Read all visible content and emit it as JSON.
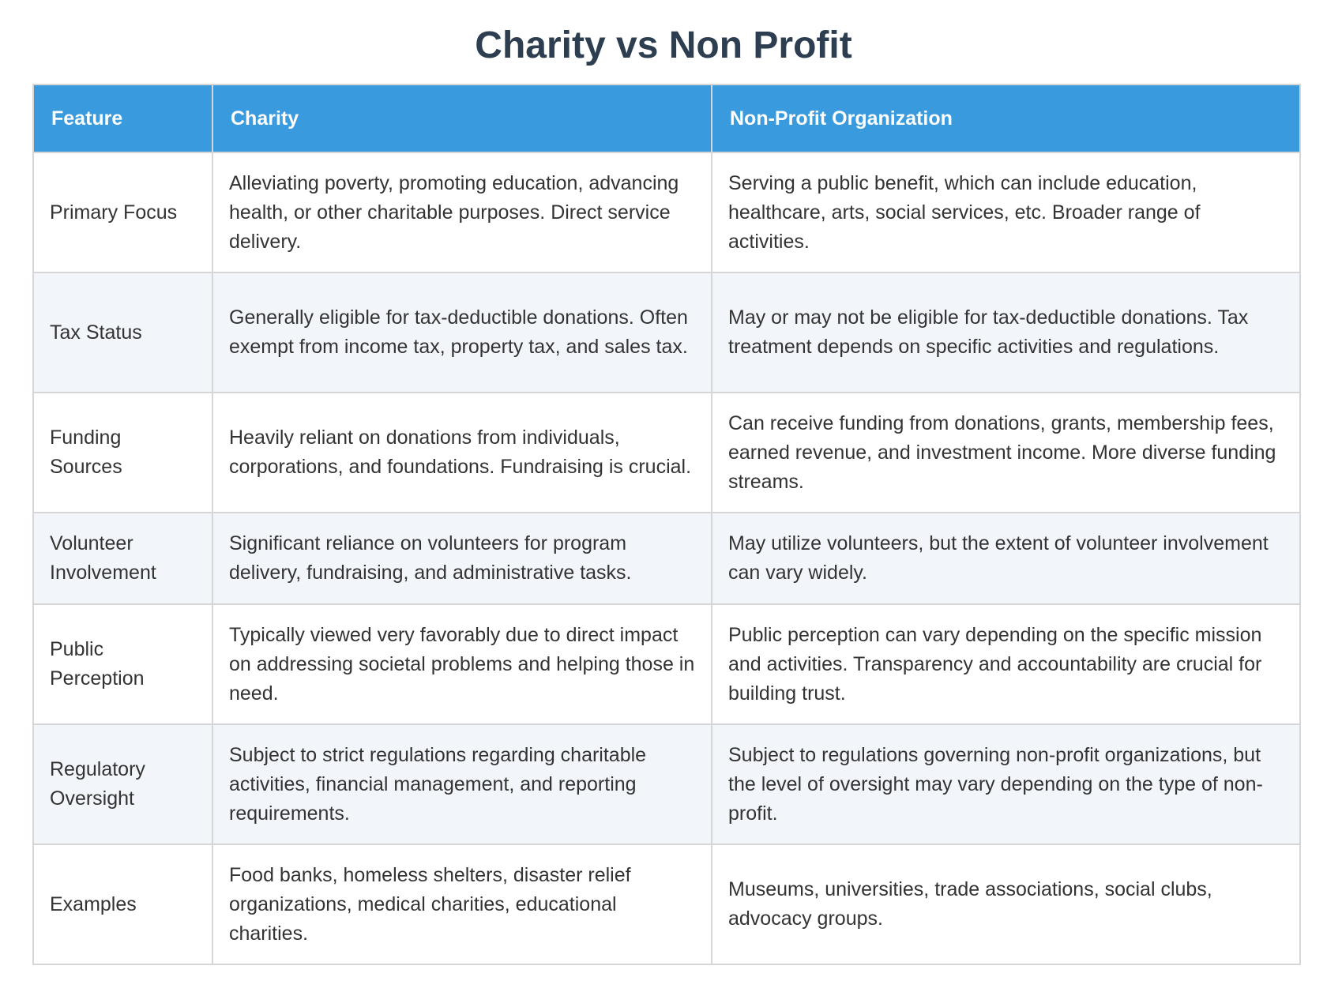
{
  "title": "Charity vs Non Profit",
  "table": {
    "headers": [
      "Feature",
      "Charity",
      "Non-Profit Organization"
    ],
    "rows": [
      {
        "feature": "Primary Focus",
        "charity": "Alleviating poverty, promoting education, advancing health, or other charitable purposes. Direct service delivery.",
        "nonprofit": "Serving a public benefit, which can include education, healthcare, arts, social services, etc. Broader range of activities."
      },
      {
        "feature": "Tax Status",
        "charity": "Generally eligible for tax-deductible donations. Often exempt from income tax, property tax, and sales tax.",
        "nonprofit": "May or may not be eligible for tax-deductible donations. Tax treatment depends on specific activities and regulations."
      },
      {
        "feature": "Funding Sources",
        "charity": "Heavily reliant on donations from individuals, corporations, and foundations. Fundraising is crucial.",
        "nonprofit": "Can receive funding from donations, grants, membership fees, earned revenue, and investment income. More diverse funding streams."
      },
      {
        "feature": "Volunteer Involvement",
        "charity": "Significant reliance on volunteers for program delivery, fundraising, and administrative tasks.",
        "nonprofit": "May utilize volunteers, but the extent of volunteer involvement can vary widely."
      },
      {
        "feature": "Public Perception",
        "charity": "Typically viewed very favorably due to direct impact on addressing societal problems and helping those in need.",
        "nonprofit": "Public perception can vary depending on the specific mission and activities. Transparency and accountability are crucial for building trust."
      },
      {
        "feature": "Regulatory Oversight",
        "charity": "Subject to strict regulations regarding charitable activities, financial management, and reporting requirements.",
        "nonprofit": "Subject to regulations governing non-profit organizations, but the level of oversight may vary depending on the type of non-profit."
      },
      {
        "feature": "Examples",
        "charity": "Food banks, homeless shelters, disaster relief organizations, medical charities, educational charities.",
        "nonprofit": "Museums, universities, trade associations, social clubs, advocacy groups."
      }
    ]
  },
  "colors": {
    "title": "#2c3e50",
    "header_bg": "#3a9ade",
    "header_text": "#ffffff",
    "row_alt_bg": "#f2f6fa",
    "border": "#d6d6d6"
  }
}
